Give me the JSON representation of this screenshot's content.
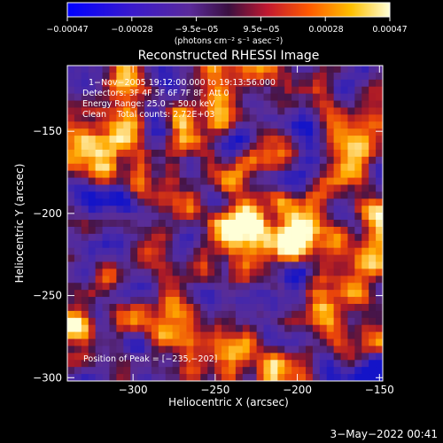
{
  "colorbar": {
    "tick_labels": [
      "−0.00047",
      "−0.00028",
      "−9.5e−05",
      "9.5e−05",
      "0.00028",
      "0.00047"
    ],
    "unit_label": "(photons cm⁻² s⁻¹ asec⁻²)",
    "range": [
      -0.00047,
      0.00047
    ]
  },
  "chart_data": {
    "type": "heatmap",
    "title": "Reconstructed RHESSI Image",
    "xlabel": "Heliocentric X (arcsec)",
    "ylabel": "Heliocentric Y (arcsec)",
    "xlim": [
      -340,
      -148
    ],
    "ylim": [
      -302,
      -110
    ],
    "x_ticks": [
      -300,
      -250,
      -200,
      -150
    ],
    "y_ticks": [
      -150,
      -200,
      -250,
      -300
    ],
    "annotation_lines": [
      "1−Nov−2005 19:12:00.000 to 19:13:56.000",
      "Detectors: 3F 4F 5F 6F 7F 8F, Att 0",
      "Energy Range: 25.0 − 50.0 keV",
      "Clean    Total counts: 2.72E+03"
    ],
    "peak_label": "Position of Peak = [−235,−202]",
    "peak": [
      -235,
      -202
    ],
    "sources": [
      {
        "x": -235,
        "y": -202,
        "intensity": 1.0
      },
      {
        "x": -200,
        "y": -215,
        "intensity": 0.95
      },
      {
        "x": -265,
        "y": -148,
        "intensity": 0.6
      },
      {
        "x": -311,
        "y": -168,
        "intensity": 0.55
      },
      {
        "x": -168,
        "y": -166,
        "intensity": 0.5
      },
      {
        "x": -160,
        "y": -246,
        "intensity": 0.45
      },
      {
        "x": -255,
        "y": -290,
        "intensity": 0.45
      }
    ]
  },
  "timestamp": "3−May−2022 00:41"
}
